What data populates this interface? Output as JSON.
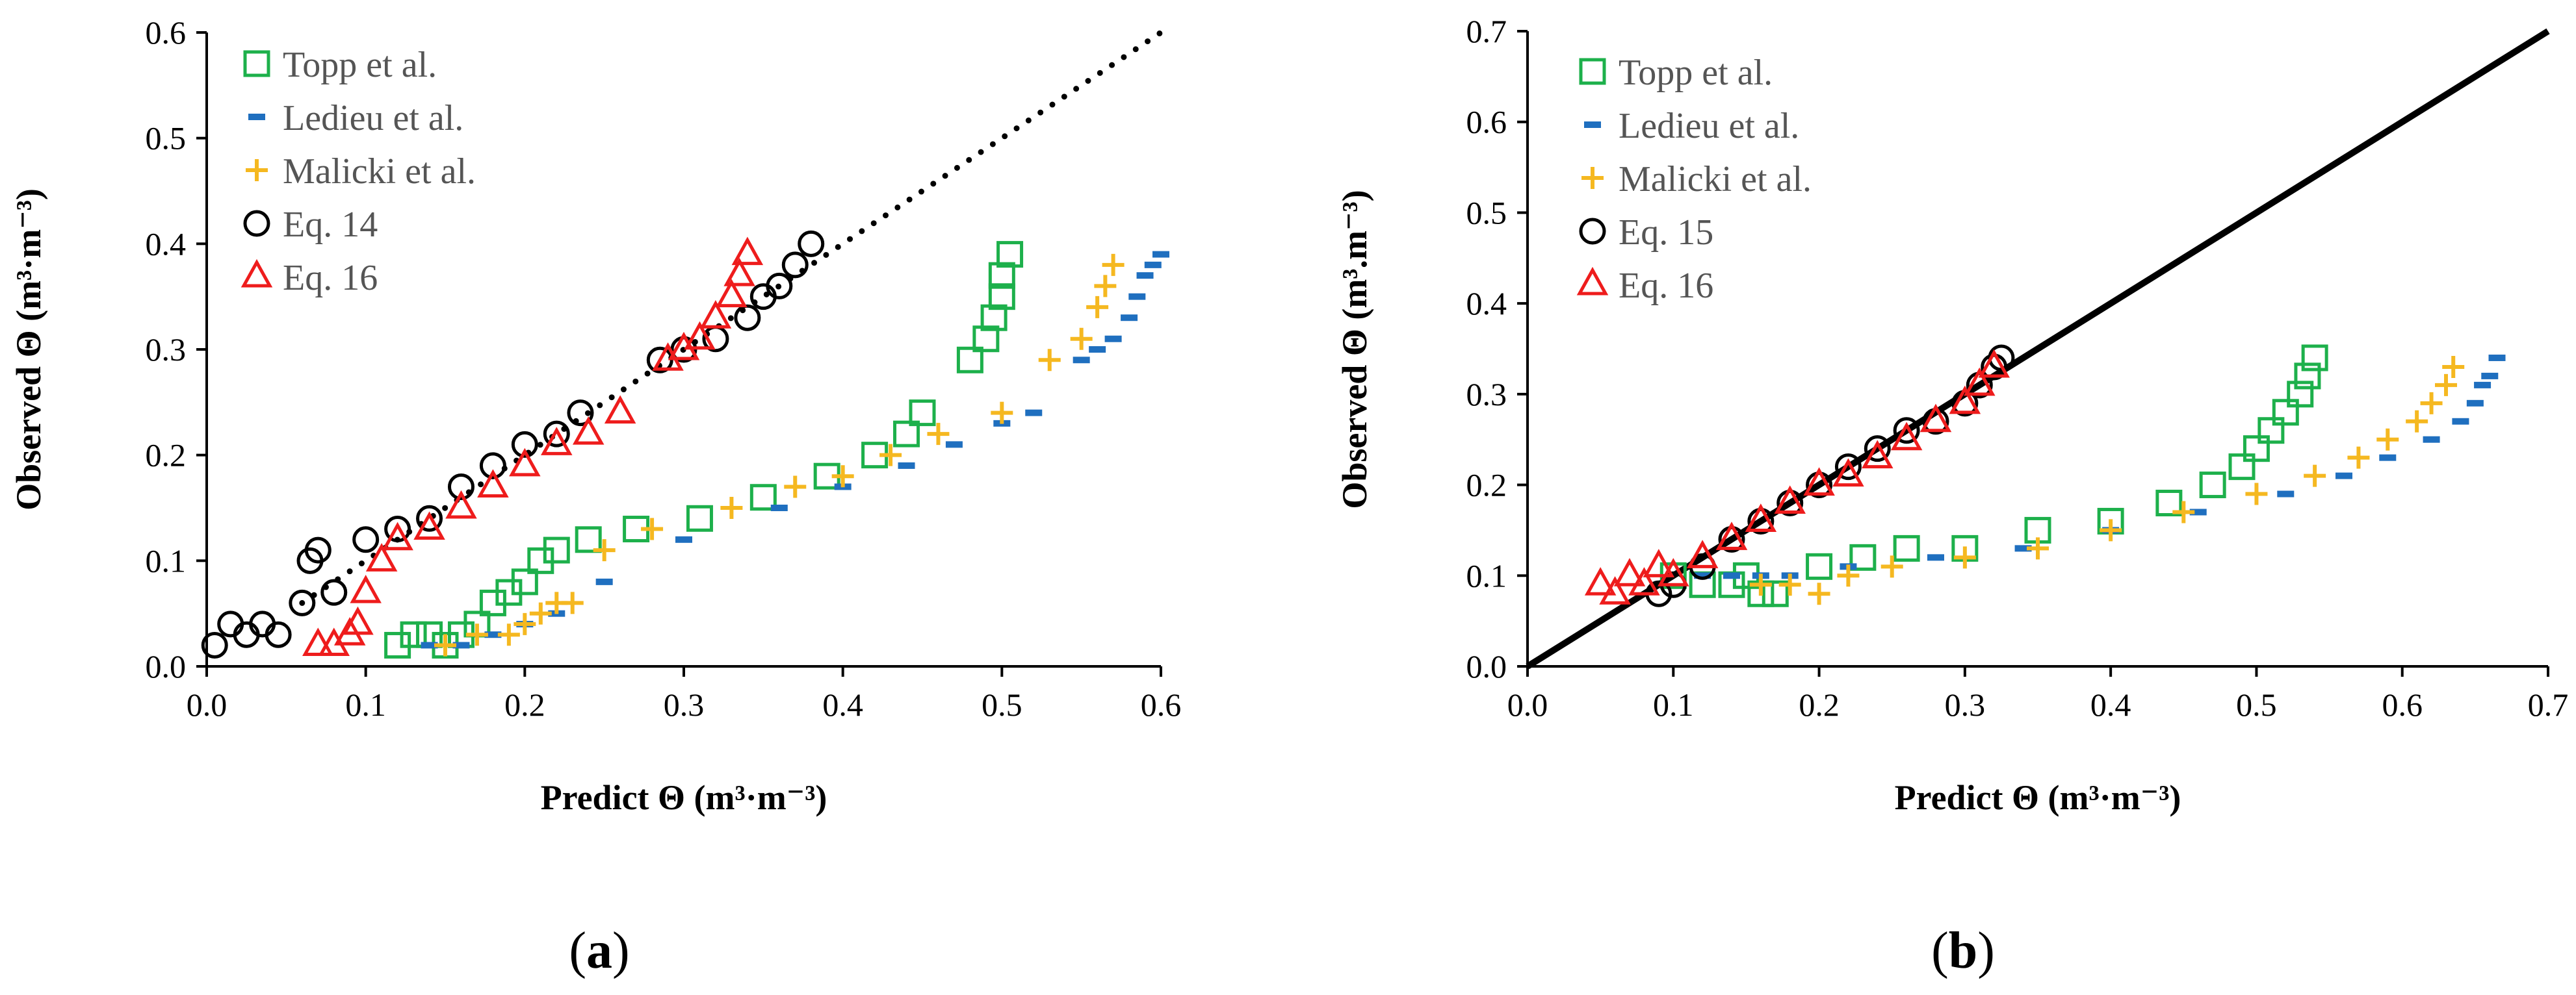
{
  "chart_data": [
    {
      "type": "scatter",
      "panel_label": "a",
      "xlabel": "Predict Θ (m³·m⁻³)",
      "ylabel": "Observed Θ (m³·m⁻³)",
      "xlim": [
        0,
        0.6
      ],
      "ylim": [
        0,
        0.6
      ],
      "x_ticks": [
        "0.0",
        "0.1",
        "0.2",
        "0.3",
        "0.4",
        "0.5",
        "0.6"
      ],
      "y_ticks": [
        "0.0",
        "0.1",
        "0.2",
        "0.3",
        "0.4",
        "0.5",
        "0.6"
      ],
      "reference_line": {
        "style": "dotted",
        "from": [
          0.06,
          0.06
        ],
        "to": [
          0.6,
          0.6
        ]
      },
      "legend_position": "top-left",
      "series": [
        {
          "name": "Topp et al.",
          "marker": "square",
          "color": "#1db04b",
          "x": [
            0.12,
            0.13,
            0.14,
            0.15,
            0.16,
            0.17,
            0.18,
            0.19,
            0.2,
            0.21,
            0.22,
            0.24,
            0.27,
            0.31,
            0.35,
            0.39,
            0.42,
            0.44,
            0.45,
            0.48,
            0.49,
            0.495,
            0.5,
            0.5,
            0.505
          ],
          "y": [
            0.02,
            0.03,
            0.03,
            0.02,
            0.03,
            0.04,
            0.06,
            0.07,
            0.08,
            0.1,
            0.11,
            0.12,
            0.13,
            0.14,
            0.16,
            0.18,
            0.2,
            0.22,
            0.24,
            0.29,
            0.31,
            0.33,
            0.35,
            0.37,
            0.39
          ]
        },
        {
          "name": "Ledieu et al.",
          "marker": "dash",
          "color": "#1f6fbf",
          "x": [
            0.14,
            0.16,
            0.18,
            0.2,
            0.22,
            0.25,
            0.3,
            0.36,
            0.4,
            0.44,
            0.47,
            0.5,
            0.52,
            0.55,
            0.56,
            0.57,
            0.58,
            0.585,
            0.59,
            0.595,
            0.6
          ],
          "y": [
            0.02,
            0.02,
            0.03,
            0.04,
            0.05,
            0.08,
            0.12,
            0.15,
            0.17,
            0.19,
            0.21,
            0.23,
            0.24,
            0.29,
            0.3,
            0.31,
            0.33,
            0.35,
            0.37,
            0.38,
            0.39
          ]
        },
        {
          "name": "Malicki et al.",
          "marker": "plus",
          "color": "#f5b820",
          "x": [
            0.15,
            0.17,
            0.19,
            0.2,
            0.21,
            0.22,
            0.23,
            0.25,
            0.28,
            0.33,
            0.37,
            0.4,
            0.43,
            0.46,
            0.5,
            0.53,
            0.55,
            0.56,
            0.565,
            0.57
          ],
          "y": [
            0.02,
            0.03,
            0.03,
            0.04,
            0.05,
            0.06,
            0.06,
            0.11,
            0.13,
            0.15,
            0.17,
            0.18,
            0.2,
            0.22,
            0.24,
            0.29,
            0.31,
            0.34,
            0.36,
            0.38
          ]
        },
        {
          "name": "Eq. 14",
          "marker": "circle",
          "color": "#000000",
          "x": [
            0.005,
            0.015,
            0.025,
            0.035,
            0.045,
            0.06,
            0.065,
            0.07,
            0.08,
            0.1,
            0.12,
            0.14,
            0.16,
            0.18,
            0.2,
            0.22,
            0.235,
            0.285,
            0.3,
            0.32,
            0.34,
            0.35,
            0.36,
            0.37,
            0.38
          ],
          "y": [
            0.02,
            0.04,
            0.03,
            0.04,
            0.03,
            0.06,
            0.1,
            0.11,
            0.07,
            0.12,
            0.13,
            0.14,
            0.17,
            0.19,
            0.21,
            0.22,
            0.24,
            0.29,
            0.3,
            0.31,
            0.33,
            0.35,
            0.36,
            0.38,
            0.4
          ]
        },
        {
          "name": "Eq. 16",
          "marker": "triangle",
          "color": "#ee1c1c",
          "x": [
            0.07,
            0.08,
            0.09,
            0.095,
            0.1,
            0.11,
            0.12,
            0.14,
            0.16,
            0.18,
            0.2,
            0.22,
            0.24,
            0.26,
            0.29,
            0.3,
            0.31,
            0.32,
            0.33,
            0.335,
            0.34
          ],
          "y": [
            0.02,
            0.02,
            0.03,
            0.04,
            0.07,
            0.1,
            0.12,
            0.13,
            0.15,
            0.17,
            0.19,
            0.21,
            0.22,
            0.24,
            0.29,
            0.3,
            0.31,
            0.33,
            0.35,
            0.37,
            0.39
          ]
        }
      ]
    },
    {
      "type": "scatter",
      "panel_label": "b",
      "xlabel": "Predict Θ (m³·m⁻³)",
      "ylabel": "Observed Θ (m³.m⁻³)",
      "xlim": [
        0,
        0.7
      ],
      "ylim": [
        0,
        0.7
      ],
      "x_ticks": [
        "0.0",
        "0.1",
        "0.2",
        "0.3",
        "0.4",
        "0.5",
        "0.6",
        "0.7"
      ],
      "y_ticks": [
        "0.0",
        "0.1",
        "0.2",
        "0.3",
        "0.4",
        "0.5",
        "0.6",
        "0.7"
      ],
      "reference_line": {
        "style": "solid",
        "from": [
          0,
          0
        ],
        "to": [
          0.7,
          0.7
        ]
      },
      "legend_position": "top-left",
      "series": [
        {
          "name": "Topp et al.",
          "marker": "square",
          "color": "#1db04b",
          "x": [
            0.1,
            0.12,
            0.14,
            0.15,
            0.16,
            0.17,
            0.2,
            0.23,
            0.26,
            0.3,
            0.35,
            0.4,
            0.44,
            0.47,
            0.49,
            0.5,
            0.51,
            0.52,
            0.53,
            0.535,
            0.54
          ],
          "y": [
            0.1,
            0.09,
            0.09,
            0.1,
            0.08,
            0.08,
            0.11,
            0.12,
            0.13,
            0.13,
            0.15,
            0.16,
            0.18,
            0.2,
            0.22,
            0.24,
            0.26,
            0.28,
            0.3,
            0.32,
            0.34
          ]
        },
        {
          "name": "Ledieu et al.",
          "marker": "dash",
          "color": "#1f6fbf",
          "x": [
            0.12,
            0.14,
            0.16,
            0.18,
            0.22,
            0.28,
            0.34,
            0.4,
            0.46,
            0.52,
            0.56,
            0.59,
            0.62,
            0.64,
            0.65,
            0.655,
            0.66,
            0.665
          ],
          "y": [
            0.1,
            0.1,
            0.1,
            0.1,
            0.11,
            0.12,
            0.13,
            0.15,
            0.17,
            0.19,
            0.21,
            0.23,
            0.25,
            0.27,
            0.29,
            0.31,
            0.32,
            0.34
          ]
        },
        {
          "name": "Malicki et al.",
          "marker": "plus",
          "color": "#f5b820",
          "x": [
            0.16,
            0.18,
            0.2,
            0.22,
            0.25,
            0.3,
            0.35,
            0.4,
            0.45,
            0.5,
            0.54,
            0.57,
            0.59,
            0.61,
            0.62,
            0.63,
            0.635
          ],
          "y": [
            0.09,
            0.09,
            0.08,
            0.1,
            0.11,
            0.12,
            0.13,
            0.15,
            0.17,
            0.19,
            0.21,
            0.23,
            0.25,
            0.27,
            0.29,
            0.31,
            0.33
          ]
        },
        {
          "name": "Eq. 15",
          "marker": "circle",
          "color": "#000000",
          "x": [
            0.09,
            0.1,
            0.12,
            0.14,
            0.16,
            0.18,
            0.2,
            0.22,
            0.24,
            0.26,
            0.28,
            0.3,
            0.31,
            0.32,
            0.325
          ],
          "y": [
            0.08,
            0.09,
            0.11,
            0.14,
            0.16,
            0.18,
            0.2,
            0.22,
            0.24,
            0.26,
            0.27,
            0.29,
            0.31,
            0.33,
            0.34
          ]
        },
        {
          "name": "Eq. 16",
          "marker": "triangle",
          "color": "#ee1c1c",
          "x": [
            0.05,
            0.06,
            0.07,
            0.08,
            0.09,
            0.1,
            0.12,
            0.14,
            0.16,
            0.18,
            0.2,
            0.22,
            0.24,
            0.26,
            0.28,
            0.3,
            0.31,
            0.32
          ],
          "y": [
            0.09,
            0.08,
            0.1,
            0.09,
            0.11,
            0.1,
            0.12,
            0.14,
            0.16,
            0.18,
            0.2,
            0.21,
            0.23,
            0.25,
            0.27,
            0.29,
            0.31,
            0.33
          ]
        }
      ]
    }
  ]
}
